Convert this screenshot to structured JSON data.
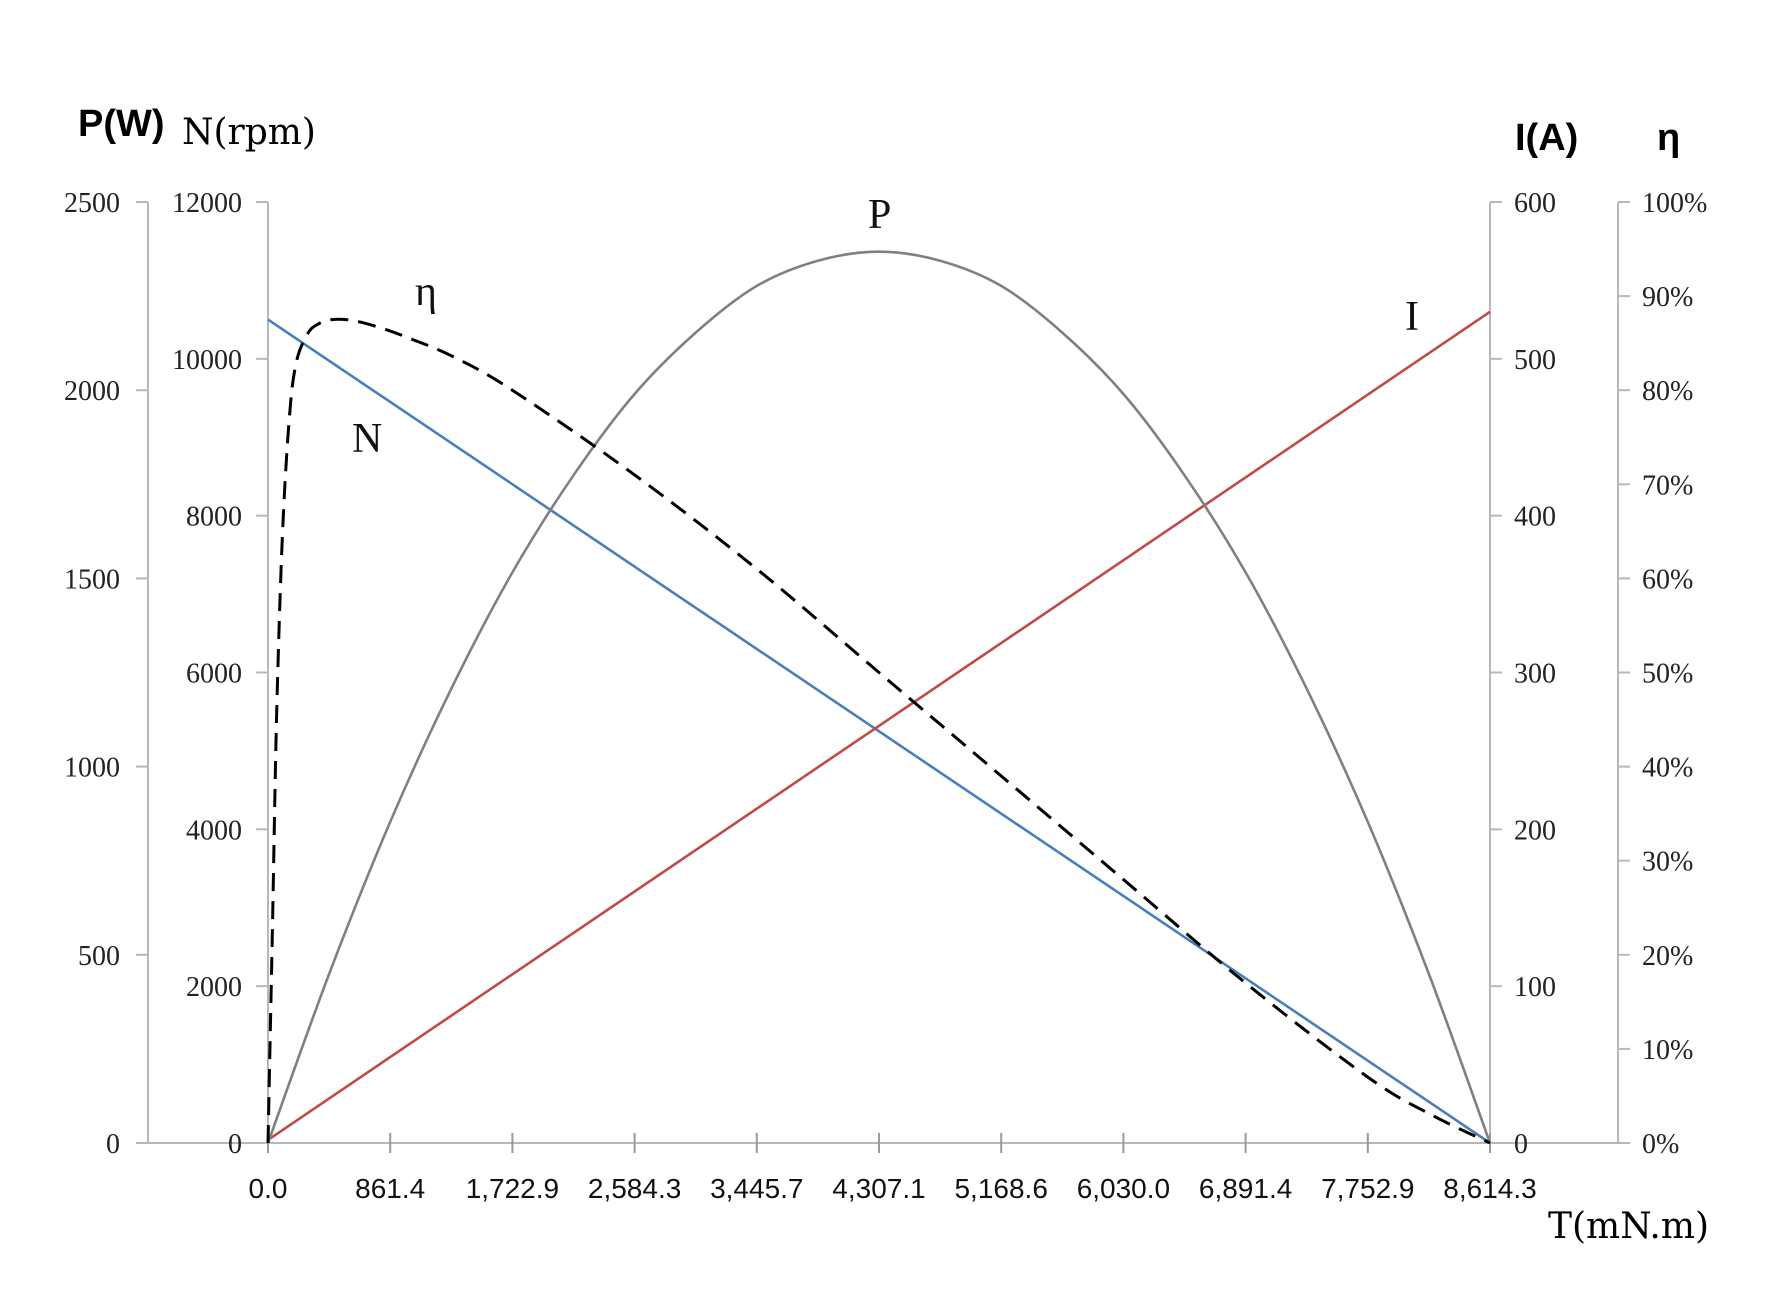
{
  "chart_data": {
    "type": "line",
    "x": {
      "label": "T(mN.m)",
      "ticks": [
        "0.0",
        "861.4",
        "1,722.9",
        "2,584.3",
        "3,445.7",
        "4,307.1",
        "5,168.6",
        "6,030.0",
        "6,891.4",
        "7,752.9",
        "8,614.3"
      ],
      "range": [
        0,
        8614.3
      ]
    },
    "axes": {
      "power": {
        "label": "P(W)",
        "range": [
          0,
          2500
        ],
        "ticks": [
          "0",
          "500",
          "1000",
          "1500",
          "2000",
          "2500"
        ]
      },
      "speed": {
        "label": "N(rpm)",
        "range": [
          0,
          12000
        ],
        "ticks": [
          "0",
          "2000",
          "4000",
          "6000",
          "8000",
          "10000",
          "12000"
        ]
      },
      "current": {
        "label": "I(A)",
        "range": [
          0,
          600
        ],
        "ticks": [
          "0",
          "100",
          "200",
          "300",
          "400",
          "500",
          "600"
        ]
      },
      "efficiency": {
        "label": "η",
        "range": [
          0,
          1
        ],
        "ticks": [
          "0%",
          "10%",
          "20%",
          "30%",
          "40%",
          "50%",
          "60%",
          "70%",
          "80%",
          "90%",
          "100%"
        ]
      }
    },
    "series": [
      {
        "name": "N",
        "axis": "speed",
        "color": "#4a7ebb",
        "style": "solid",
        "x": [
          0,
          8614.3
        ],
        "y": [
          10500,
          0
        ]
      },
      {
        "name": "I",
        "axis": "current",
        "color": "#be4b48",
        "style": "solid",
        "x": [
          0,
          8614.3
        ],
        "y": [
          2,
          530
        ]
      },
      {
        "name": "P",
        "axis": "power",
        "color": "#808080",
        "style": "solid",
        "x": [
          0,
          430.7,
          861.4,
          1292.1,
          1722.9,
          2153.6,
          2584.3,
          3015.0,
          3445.7,
          3876.4,
          4307.1,
          4737.9,
          5168.6,
          5599.3,
          6030.0,
          6460.7,
          6891.4,
          7322.2,
          7752.9,
          8183.6,
          8614.3
        ],
        "y": [
          0,
          449,
          853,
          1207,
          1516,
          1774,
          1990,
          2153,
          2277,
          2344,
          2368,
          2344,
          2277,
          2153,
          1990,
          1774,
          1516,
          1207,
          853,
          449,
          0
        ]
      },
      {
        "name": "η",
        "axis": "efficiency",
        "color": "#000000",
        "style": "dashed",
        "x": [
          0,
          30,
          60,
          100,
          150,
          200,
          280,
          350,
          450,
          600,
          800,
          1000,
          1300,
          1722.9,
          2584.3,
          3445.7,
          4307.1,
          5168.6,
          6030.0,
          6891.4,
          7752.9,
          8200,
          8614.3
        ],
        "y": [
          0.0,
          0.22,
          0.45,
          0.64,
          0.77,
          0.83,
          0.86,
          0.87,
          0.875,
          0.874,
          0.866,
          0.855,
          0.836,
          0.8,
          0.71,
          0.61,
          0.5,
          0.39,
          0.28,
          0.17,
          0.07,
          0.03,
          0.0
        ]
      }
    ],
    "curve_labels": [
      "N",
      "η",
      "P",
      "I"
    ]
  }
}
